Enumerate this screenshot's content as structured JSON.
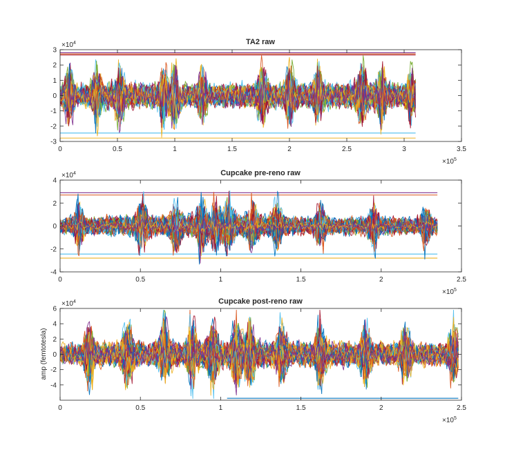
{
  "figure": {
    "background": "#ffffff"
  },
  "palette": [
    "#0072bd",
    "#d95319",
    "#edb120",
    "#7e2f8e",
    "#77ac30",
    "#4dbeee",
    "#a2142f"
  ],
  "chart_data": [
    {
      "type": "line",
      "title": "TA2 raw",
      "xlabel": "",
      "ylabel": "",
      "xlim": [
        0,
        350000
      ],
      "ylim": [
        -30000,
        30000
      ],
      "x_ticks": [
        0,
        50000,
        100000,
        150000,
        200000,
        250000,
        300000,
        350000
      ],
      "x_tick_labels": [
        "0",
        "0.5",
        "1",
        "1.5",
        "2",
        "2.5",
        "3",
        "3.5"
      ],
      "y_ticks": [
        -30000,
        -20000,
        -10000,
        0,
        10000,
        20000,
        30000
      ],
      "y_tick_labels": [
        "-3",
        "-2",
        "-1",
        "0",
        "1",
        "2",
        "3"
      ],
      "x_exponent": "×10",
      "x_exponent_power": "5",
      "y_exponent": "×10",
      "y_exponent_power": "4",
      "x_data_extent": [
        0,
        310000
      ],
      "envelope": [
        [
          0,
          8000
        ],
        [
          20000,
          9000
        ],
        [
          40000,
          9500
        ],
        [
          60000,
          10000
        ],
        [
          80000,
          9500
        ],
        [
          100000,
          9000
        ],
        [
          120000,
          8500
        ],
        [
          140000,
          9000
        ],
        [
          160000,
          9500
        ],
        [
          180000,
          10000
        ],
        [
          200000,
          9000
        ],
        [
          220000,
          9500
        ],
        [
          240000,
          9000
        ],
        [
          260000,
          11000
        ],
        [
          280000,
          10000
        ],
        [
          310000,
          8000
        ]
      ],
      "bursts": [
        {
          "x": 8000,
          "amp": 26000
        },
        {
          "x": 32000,
          "amp": 24000
        },
        {
          "x": 52000,
          "amp": 26000
        },
        {
          "x": 90000,
          "amp": 25000
        },
        {
          "x": 100000,
          "amp": 26000
        },
        {
          "x": 124000,
          "amp": 24000
        },
        {
          "x": 176000,
          "amp": 26000
        },
        {
          "x": 200000,
          "amp": 25000
        },
        {
          "x": 225000,
          "amp": 24000
        },
        {
          "x": 263000,
          "amp": 28000
        },
        {
          "x": 280000,
          "amp": 27000
        },
        {
          "x": 306000,
          "amp": 22000
        }
      ],
      "flat_lines": [
        {
          "y": 28000,
          "color": "#7e2f8e"
        },
        {
          "y": 27200,
          "color": "#d95319"
        },
        {
          "y": 26500,
          "color": "#a2142f"
        },
        {
          "y": -24500,
          "color": "#4dbeee"
        },
        {
          "y": -27800,
          "color": "#edb120"
        }
      ],
      "series_count": 60
    },
    {
      "type": "line",
      "title": "Cupcake pre-reno raw",
      "xlabel": "",
      "ylabel": "",
      "xlim": [
        0,
        250000
      ],
      "ylim": [
        -40000,
        40000
      ],
      "x_ticks": [
        0,
        50000,
        100000,
        150000,
        200000,
        250000
      ],
      "x_tick_labels": [
        "0",
        "0.5",
        "1",
        "1.5",
        "2",
        "2.5"
      ],
      "y_ticks": [
        -40000,
        -20000,
        0,
        20000,
        40000
      ],
      "y_tick_labels": [
        "-4",
        "-2",
        "0",
        "2",
        "4"
      ],
      "x_exponent": "×10",
      "x_exponent_power": "5",
      "y_exponent": "×10",
      "y_exponent_power": "4",
      "x_data_extent": [
        0,
        235000
      ],
      "envelope": [
        [
          0,
          8000
        ],
        [
          25000,
          9000
        ],
        [
          50000,
          12000
        ],
        [
          75000,
          11000
        ],
        [
          100000,
          13000
        ],
        [
          125000,
          11000
        ],
        [
          150000,
          9000
        ],
        [
          175000,
          9000
        ],
        [
          200000,
          9500
        ],
        [
          235000,
          8000
        ]
      ],
      "bursts": [
        {
          "x": 12000,
          "amp": 25000
        },
        {
          "x": 51000,
          "amp": 28000
        },
        {
          "x": 72000,
          "amp": 25000
        },
        {
          "x": 88000,
          "amp": 26000
        },
        {
          "x": 97000,
          "amp": 28000
        },
        {
          "x": 105000,
          "amp": 27000
        },
        {
          "x": 120000,
          "amp": 25000
        },
        {
          "x": 135000,
          "amp": 26000
        },
        {
          "x": 162000,
          "amp": 24000
        },
        {
          "x": 195000,
          "amp": 25000
        },
        {
          "x": 228000,
          "amp": 24000
        }
      ],
      "flat_lines": [
        {
          "y": 29000,
          "color": "#7e2f8e"
        },
        {
          "y": 27000,
          "color": "#d95319"
        },
        {
          "y": -24500,
          "color": "#4dbeee"
        },
        {
          "y": -28000,
          "color": "#edb120"
        }
      ],
      "series_count": 60
    },
    {
      "type": "line",
      "title": "Cupcake post-reno raw",
      "xlabel": "",
      "ylabel": "amp (femtotesla)",
      "xlim": [
        0,
        250000
      ],
      "ylim": [
        -60000,
        60000
      ],
      "x_ticks": [
        0,
        50000,
        100000,
        150000,
        200000,
        250000
      ],
      "x_tick_labels": [
        "0",
        "0.5",
        "1",
        "1.5",
        "2",
        "2.5"
      ],
      "y_ticks": [
        -40000,
        -20000,
        0,
        20000,
        40000,
        60000
      ],
      "y_tick_labels": [
        "-4",
        "-2",
        "0",
        "2",
        "4",
        "6"
      ],
      "x_exponent": "×10",
      "x_exponent_power": "5",
      "y_exponent": "×10",
      "y_exponent_power": "4",
      "x_data_extent": [
        0,
        248000
      ],
      "envelope": [
        [
          0,
          15000
        ],
        [
          25000,
          18000
        ],
        [
          50000,
          20000
        ],
        [
          75000,
          18000
        ],
        [
          100000,
          22000
        ],
        [
          125000,
          20000
        ],
        [
          150000,
          18000
        ],
        [
          175000,
          19000
        ],
        [
          200000,
          18000
        ],
        [
          248000,
          16000
        ]
      ],
      "bursts": [
        {
          "x": 18000,
          "amp": 57000
        },
        {
          "x": 42000,
          "amp": 58000
        },
        {
          "x": 65000,
          "amp": 52000
        },
        {
          "x": 82000,
          "amp": 55000
        },
        {
          "x": 95000,
          "amp": 58000
        },
        {
          "x": 110000,
          "amp": 58000
        },
        {
          "x": 118000,
          "amp": 57000
        },
        {
          "x": 138000,
          "amp": 52000
        },
        {
          "x": 162000,
          "amp": 57000
        },
        {
          "x": 190000,
          "amp": 55000
        },
        {
          "x": 215000,
          "amp": 54000
        },
        {
          "x": 245000,
          "amp": 56000
        }
      ],
      "flat_lines": [
        {
          "y": -57500,
          "color": "#0072bd",
          "x_start": 104000
        }
      ],
      "series_count": 60
    }
  ]
}
